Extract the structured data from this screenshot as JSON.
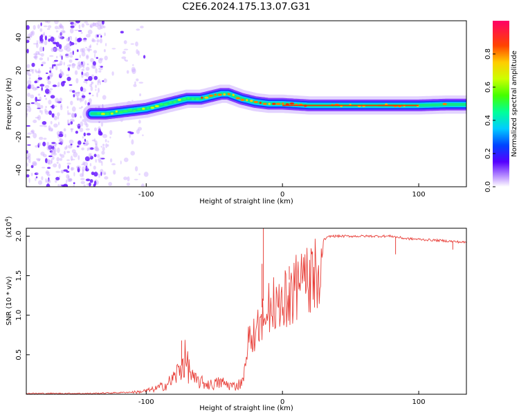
{
  "title": "C2E6.2024.175.13.07.G31",
  "chart_data": [
    {
      "type": "heatmap",
      "xlabel": "Height of straight line (km)",
      "ylabel": "Frequency (Hz)",
      "xlim": [
        -188,
        135
      ],
      "ylim": [
        -50,
        50
      ],
      "xticks": [
        -100,
        0,
        100
      ],
      "yticks": [
        -40,
        -20,
        0,
        20,
        40
      ],
      "colorbar": {
        "label": "Normalized spectral amplitude",
        "range": [
          0,
          1
        ],
        "ticks": [
          0.0,
          0.2,
          0.4,
          0.6,
          0.8
        ]
      },
      "ridge": {
        "x": [
          -140,
          -130,
          -120,
          -110,
          -100,
          -90,
          -80,
          -70,
          -60,
          -50,
          -45,
          -40,
          -30,
          -20,
          -10,
          0,
          20,
          40,
          60,
          80,
          100,
          120,
          135
        ],
        "freq": [
          -6,
          -6,
          -5,
          -4,
          -3,
          -1,
          1,
          3,
          3,
          5,
          6,
          6,
          3,
          1,
          0,
          0,
          -1,
          -1,
          -1,
          -1,
          -1,
          -0.5,
          -0.5
        ]
      },
      "noise_region_x": [
        -188,
        -130
      ]
    },
    {
      "type": "line",
      "xlabel": "Height of straight line (km)",
      "ylabel": "SNR (10 * v/v)",
      "y_multiplier": "(x10",
      "y_multiplier_exp": "4",
      "y_multiplier_close": ")",
      "xlim": [
        -188,
        135
      ],
      "ylim": [
        0,
        2.1
      ],
      "xticks": [
        -100,
        0,
        100
      ],
      "yticks": [
        0.5,
        1.0,
        1.5,
        2.0
      ],
      "ytick_labels": [
        "0.5",
        "1.0",
        "1.5",
        "2.0"
      ],
      "color": "#e8403a",
      "envelope": {
        "x": [
          -188,
          -140,
          -120,
          -105,
          -95,
          -85,
          -80,
          -75,
          -72,
          -65,
          -58,
          -52,
          -45,
          -40,
          -35,
          -30,
          -28,
          -25,
          -20,
          -15,
          -12,
          -10,
          -5,
          0,
          5,
          10,
          15,
          20,
          25,
          30,
          35,
          40,
          60,
          80,
          90,
          100,
          110,
          120,
          135
        ],
        "y": [
          0.01,
          0.01,
          0.02,
          0.03,
          0.06,
          0.12,
          0.2,
          0.32,
          0.45,
          0.18,
          0.14,
          0.12,
          0.15,
          0.12,
          0.1,
          0.15,
          0.3,
          0.75,
          0.9,
          1.1,
          1.35,
          1.25,
          1.45,
          1.35,
          1.45,
          1.55,
          1.6,
          1.7,
          1.8,
          1.95,
          2.0,
          2.0,
          2.0,
          2.0,
          1.97,
          1.96,
          1.95,
          1.94,
          1.92
        ]
      },
      "spikes": [
        {
          "x": -74,
          "y": 0.68
        },
        {
          "x": -15,
          "y": 1.65
        },
        {
          "x": -14,
          "y": 2.1
        },
        {
          "x": 5,
          "y": 1.62
        },
        {
          "x": 83,
          "y": 1.77
        },
        {
          "x": 125,
          "y": 1.83
        }
      ]
    }
  ]
}
